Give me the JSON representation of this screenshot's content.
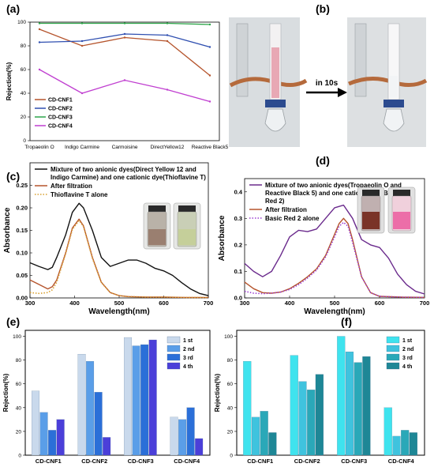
{
  "panels": {
    "a": "(a)",
    "b": "(b)",
    "c": "(c)",
    "d": "(d)",
    "e": "(e)",
    "f": "(f)"
  },
  "photo": {
    "arrow_text": "in 10s",
    "colors": {
      "pink_solution": "#e8a8b4",
      "clear_solution": "#f2f4f6"
    }
  },
  "chart_data": [
    {
      "id": "a",
      "type": "line",
      "title": "",
      "xlabel": "",
      "ylabel": "Rejection(%)",
      "ylim": [
        0,
        100
      ],
      "yticks": [
        0,
        20,
        40,
        60,
        80,
        100
      ],
      "categories": [
        "Tropaeolin O",
        "Indigo Carmine",
        "Carmoisine",
        "DirectYellow12",
        "Reactive Black5"
      ],
      "legend_position": "left",
      "series": [
        {
          "name": "CD-CNF1",
          "color": "#b5542c",
          "values": [
            94,
            80,
            87,
            84,
            55
          ]
        },
        {
          "name": "CD-CNF2",
          "color": "#2f4fb0",
          "values": [
            83,
            84,
            90,
            89,
            79
          ]
        },
        {
          "name": "CD-CNF3",
          "color": "#2ea64a",
          "values": [
            99,
            99,
            99,
            99,
            98
          ]
        },
        {
          "name": "CD-CNF4",
          "color": "#c03fd0",
          "values": [
            60,
            40,
            51,
            43,
            33
          ]
        }
      ]
    },
    {
      "id": "c",
      "type": "line",
      "title": "",
      "xlabel": "Wavelength(nm)",
      "ylabel": "Absorbance",
      "xlim": [
        300,
        700
      ],
      "ylim": [
        0,
        0.3
      ],
      "xticks": [
        300,
        400,
        500,
        600,
        700
      ],
      "yticks": [
        0.0,
        0.05,
        0.1,
        0.15,
        0.2,
        0.25
      ],
      "ytick_labels": [
        "0.00",
        "0.05",
        "0.10",
        "0.15",
        "0.20",
        "0.25"
      ],
      "legend_position": "top",
      "series": [
        {
          "name": "Mixture of two anionic dyes(Direct Yellow 12 and Indigo Carmine) and one cationic dye(Thioflavine T)",
          "color": "#111111",
          "style": "solid",
          "x": [
            300,
            320,
            340,
            350,
            360,
            380,
            395,
            410,
            420,
            440,
            460,
            480,
            500,
            520,
            540,
            560,
            580,
            600,
            620,
            640,
            660,
            680,
            700
          ],
          "y": [
            0.078,
            0.07,
            0.063,
            0.068,
            0.09,
            0.14,
            0.19,
            0.21,
            0.2,
            0.15,
            0.09,
            0.07,
            0.077,
            0.084,
            0.084,
            0.077,
            0.066,
            0.06,
            0.05,
            0.034,
            0.02,
            0.01,
            0.005
          ]
        },
        {
          "name": "After filtration",
          "color": "#b5542c",
          "style": "solid",
          "x": [
            300,
            320,
            340,
            350,
            360,
            380,
            395,
            410,
            420,
            440,
            460,
            480,
            500,
            520,
            560,
            600,
            650,
            700
          ],
          "y": [
            0.04,
            0.03,
            0.02,
            0.025,
            0.04,
            0.1,
            0.155,
            0.175,
            0.16,
            0.09,
            0.035,
            0.012,
            0.005,
            0.003,
            0.002,
            0.002,
            0.001,
            0.001
          ]
        },
        {
          "name": "Thioflavine T  alone",
          "color": "#d9a030",
          "style": "dotted",
          "x": [
            300,
            320,
            340,
            350,
            360,
            380,
            395,
            410,
            420,
            440,
            460,
            480,
            500,
            520,
            560,
            600,
            650,
            700
          ],
          "y": [
            0.012,
            0.01,
            0.012,
            0.018,
            0.035,
            0.098,
            0.152,
            0.172,
            0.158,
            0.088,
            0.034,
            0.012,
            0.005,
            0.003,
            0.002,
            0.002,
            0.001,
            0.001
          ]
        }
      ]
    },
    {
      "id": "d",
      "type": "line",
      "title": "",
      "xlabel": "Wavelength(nm)",
      "ylabel": "Absorbance",
      "xlim": [
        300,
        700
      ],
      "ylim": [
        0,
        0.45
      ],
      "xticks": [
        300,
        400,
        500,
        600,
        700
      ],
      "yticks": [
        0.0,
        0.1,
        0.2,
        0.3,
        0.4
      ],
      "ytick_labels": [
        "0.0",
        "0.1",
        "0.2",
        "0.3",
        "0.4"
      ],
      "legend_position": "top",
      "series": [
        {
          "name": "Mixture of two anionic dyes(Tropaeolin O and Reactive Black 5) and  one cationic dye(Basic Red 2)",
          "color": "#6a2a8c",
          "style": "solid",
          "x": [
            300,
            320,
            340,
            360,
            380,
            400,
            420,
            440,
            460,
            480,
            500,
            520,
            540,
            560,
            580,
            600,
            620,
            640,
            660,
            680,
            700
          ],
          "y": [
            0.13,
            0.1,
            0.08,
            0.1,
            0.16,
            0.23,
            0.255,
            0.25,
            0.26,
            0.3,
            0.34,
            0.35,
            0.3,
            0.22,
            0.2,
            0.19,
            0.15,
            0.09,
            0.05,
            0.025,
            0.015
          ]
        },
        {
          "name": "After filtration",
          "color": "#b5542c",
          "style": "solid",
          "x": [
            300,
            320,
            340,
            360,
            380,
            400,
            420,
            440,
            460,
            480,
            500,
            510,
            520,
            530,
            540,
            560,
            580,
            600,
            650,
            700
          ],
          "y": [
            0.06,
            0.035,
            0.02,
            0.018,
            0.022,
            0.035,
            0.055,
            0.08,
            0.11,
            0.16,
            0.24,
            0.28,
            0.3,
            0.28,
            0.22,
            0.08,
            0.02,
            0.006,
            0.003,
            0.002
          ]
        },
        {
          "name": "Basic Red 2 alone",
          "color": "#9b3fd0",
          "style": "dotted",
          "x": [
            300,
            320,
            340,
            360,
            380,
            400,
            420,
            440,
            460,
            480,
            500,
            510,
            520,
            530,
            540,
            560,
            580,
            600,
            650,
            700
          ],
          "y": [
            0.025,
            0.018,
            0.016,
            0.018,
            0.022,
            0.032,
            0.05,
            0.075,
            0.105,
            0.155,
            0.23,
            0.27,
            0.285,
            0.27,
            0.21,
            0.08,
            0.02,
            0.006,
            0.003,
            0.002
          ]
        }
      ]
    },
    {
      "id": "e",
      "type": "bar",
      "title": "",
      "xlabel": "",
      "ylabel": "Rejection(%)",
      "ylim": [
        0,
        105
      ],
      "yticks": [
        0,
        20,
        40,
        60,
        80,
        100
      ],
      "categories": [
        "CD-CNF1",
        "CD-CNF2",
        "CD-CNF3",
        "CD-CNF4"
      ],
      "legend_position": "top-right",
      "series": [
        {
          "name": "1 st",
          "color": "#c9d9ec",
          "values": [
            54,
            85,
            99,
            32
          ]
        },
        {
          "name": "2 nd",
          "color": "#5a9ee8",
          "values": [
            36,
            79,
            92,
            30
          ]
        },
        {
          "name": "3 rd",
          "color": "#2b6fd8",
          "values": [
            21,
            53,
            93,
            40
          ]
        },
        {
          "name": "4 th",
          "color": "#4b3fd9",
          "values": [
            30,
            15,
            97,
            14
          ]
        }
      ]
    },
    {
      "id": "f",
      "type": "bar",
      "title": "",
      "xlabel": "",
      "ylabel": "Rejection(%)",
      "ylim": [
        0,
        105
      ],
      "yticks": [
        0,
        20,
        40,
        60,
        80,
        100
      ],
      "categories": [
        "CD-CNF1",
        "CD-CNF2",
        "CD-CNF3",
        "CD-CNF4"
      ],
      "legend_position": "top-right",
      "series": [
        {
          "name": "1 st",
          "color": "#3fe3ee",
          "values": [
            79,
            84,
            100,
            40
          ]
        },
        {
          "name": "2 nd",
          "color": "#3fc3de",
          "values": [
            32,
            62,
            87,
            16
          ]
        },
        {
          "name": "3 rd",
          "color": "#2aa8b8",
          "values": [
            37,
            55,
            78,
            21
          ]
        },
        {
          "name": "4 th",
          "color": "#1e8796",
          "values": [
            19,
            68,
            83,
            19
          ]
        }
      ]
    }
  ]
}
